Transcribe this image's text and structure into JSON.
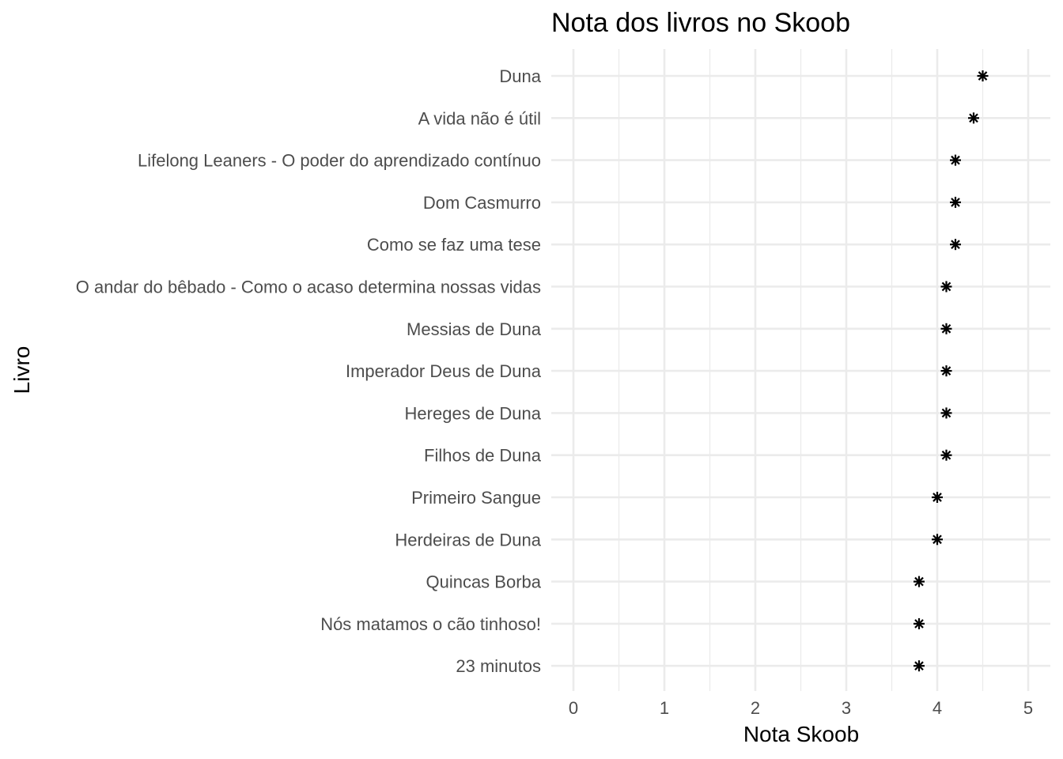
{
  "chart_data": {
    "type": "scatter",
    "title": "Nota dos livros no Skoob",
    "xlabel": "Nota Skoob",
    "ylabel": "Livro",
    "xlim": [
      0,
      5
    ],
    "x_ticks": [
      "0",
      "1",
      "2",
      "3",
      "4",
      "5"
    ],
    "grid": true,
    "marker": "asterisk",
    "marker_color": "#000000",
    "categories": [
      "Duna",
      "A vida não é útil",
      "Lifelong Leaners - O poder do aprendizado contínuo",
      "Dom Casmurro",
      "Como se faz uma tese",
      "O andar do bêbado - Como o acaso determina nossas vidas",
      "Messias de Duna",
      "Imperador Deus de Duna",
      "Hereges de Duna",
      "Filhos de Duna",
      "Primeiro Sangue",
      "Herdeiras de Duna",
      "Quincas Borba",
      "Nós matamos o cão tinhoso!",
      "23 minutos"
    ],
    "values": [
      4.5,
      4.4,
      4.2,
      4.2,
      4.2,
      4.1,
      4.1,
      4.1,
      4.1,
      4.1,
      4.0,
      4.0,
      3.8,
      3.8,
      3.8
    ]
  }
}
